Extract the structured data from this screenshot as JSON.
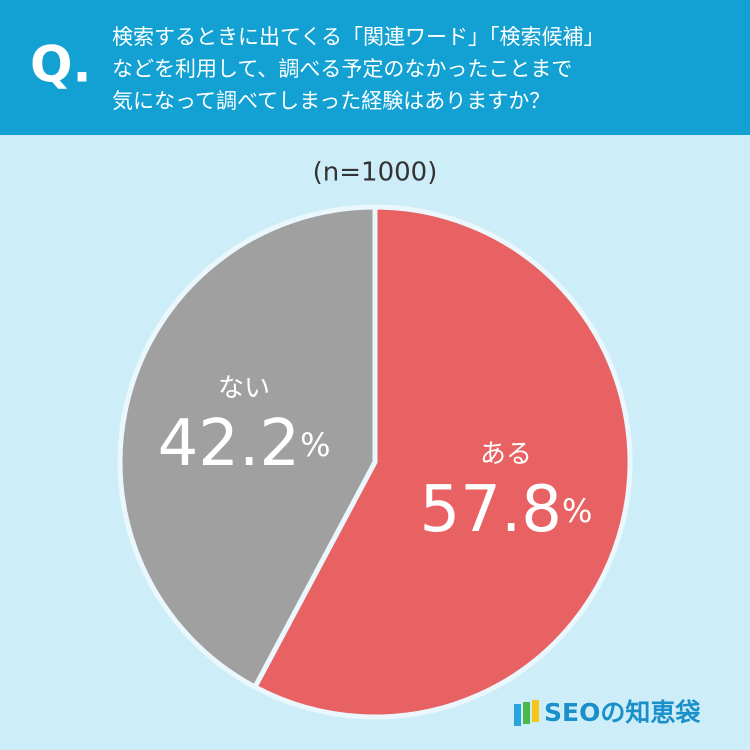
{
  "chart_data": {
    "type": "pie",
    "q_mark": "Q.",
    "question_lines": [
      "検索するときに出てくる「関連ワード」「検索候補」",
      "などを利用して、調べる予定のなかったことまで",
      "気になって調べてしまった経験はありますか？"
    ],
    "subtitle": "(n=1000)",
    "categories": [
      "ある",
      "ない"
    ],
    "values": [
      57.8,
      42.2
    ],
    "value_labels": [
      "57.8%",
      "42.2%"
    ],
    "colors": [
      "#e86163",
      "#a0a0a0"
    ],
    "brand": "SEOの知恵袋"
  }
}
